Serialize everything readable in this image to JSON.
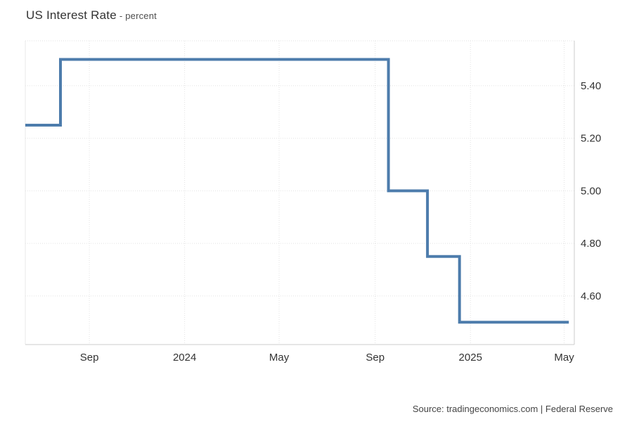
{
  "page": {
    "title": "US Interest Rate",
    "subtitle": "- percent",
    "source": "Source: tradingeconomics.com | Federal Reserve"
  },
  "chart_data": {
    "type": "line",
    "subtype": "step-after",
    "title": "US Interest Rate - percent",
    "grid": {
      "show": true,
      "style": "dotted",
      "color": "#e2e2e2"
    },
    "legend": "none",
    "series": [
      {
        "name": "US Interest Rate (percent)",
        "color": "#4d7cac",
        "points": [
          {
            "date": "2023-06-11",
            "value": 5.25
          },
          {
            "date": "2023-07-26",
            "value": 5.5
          },
          {
            "date": "2024-09-18",
            "value": 5.0
          },
          {
            "date": "2024-11-07",
            "value": 4.75
          },
          {
            "date": "2024-12-18",
            "value": 4.5
          },
          {
            "date": "2025-05-07",
            "value": 4.5
          }
        ]
      }
    ],
    "x_axis": {
      "domain_start": "2023-06-11",
      "domain_end": "2025-05-14",
      "ticks": [
        {
          "date": "2023-09-01",
          "label": "Sep"
        },
        {
          "date": "2024-01-01",
          "label": "2024"
        },
        {
          "date": "2024-05-01",
          "label": "May"
        },
        {
          "date": "2024-09-01",
          "label": "Sep"
        },
        {
          "date": "2025-01-01",
          "label": "2025"
        },
        {
          "date": "2025-05-01",
          "label": "May"
        }
      ]
    },
    "y_axis": {
      "side": "right",
      "min": 4.415,
      "max": 5.571,
      "ticks": [
        5.4,
        5.2,
        5.0,
        4.8,
        4.6
      ],
      "tick_decimals": 2
    }
  }
}
